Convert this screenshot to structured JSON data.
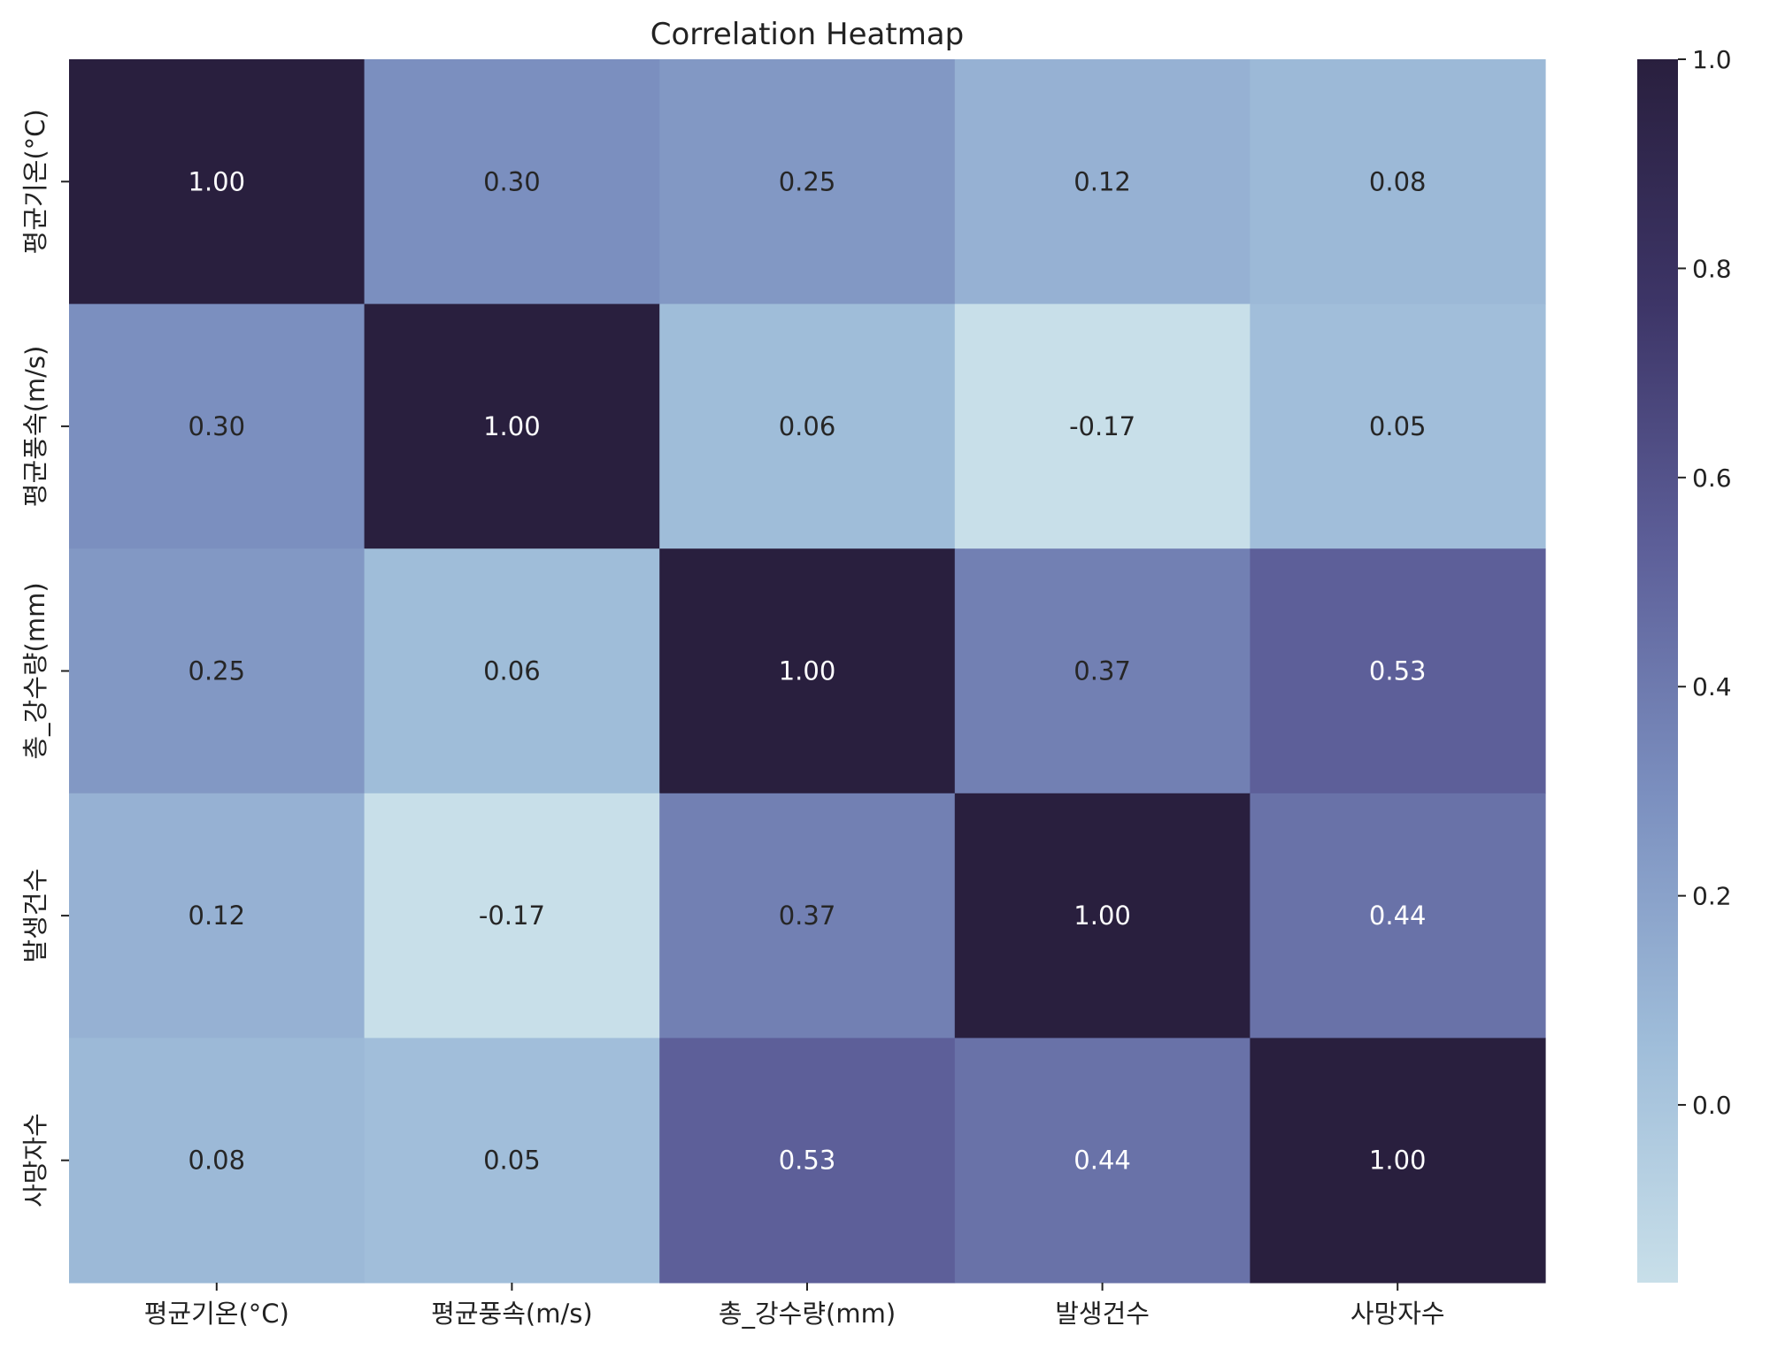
{
  "chart_data": {
    "type": "heatmap",
    "title": "Correlation Heatmap",
    "xlabel": "",
    "ylabel": "",
    "x_categories": [
      "평균기온(°C)",
      "평균풍속(m/s)",
      "총_강수량(mm)",
      "발생건수",
      "사망자수"
    ],
    "y_categories": [
      "평균기온(°C)",
      "평균풍속(m/s)",
      "총_강수량(mm)",
      "발생건수",
      "사망자수"
    ],
    "values": [
      [
        1.0,
        0.3,
        0.25,
        0.12,
        0.08
      ],
      [
        0.3,
        1.0,
        0.06,
        -0.17,
        0.05
      ],
      [
        0.25,
        0.06,
        1.0,
        0.37,
        0.53
      ],
      [
        0.12,
        -0.17,
        0.37,
        1.0,
        0.44
      ],
      [
        0.08,
        0.05,
        0.53,
        0.44,
        1.0
      ]
    ],
    "value_format": "0.00",
    "annotations": true,
    "colorbar": {
      "range": [
        -0.17,
        1.0
      ],
      "ticks": [
        "0.0",
        "0.2",
        "0.4",
        "0.6",
        "0.8",
        "1.0"
      ],
      "tick_values": [
        0.0,
        0.2,
        0.4,
        0.6,
        0.8,
        1.0
      ],
      "placement": "right"
    },
    "colormap": [
      "#c8dfe9",
      "#9ebcd9",
      "#7b8fbf",
      "#5d5f99",
      "#3d3567",
      "#291f3e"
    ],
    "text_colors": {
      "light": "#ffffff",
      "dark": "#262626"
    }
  }
}
